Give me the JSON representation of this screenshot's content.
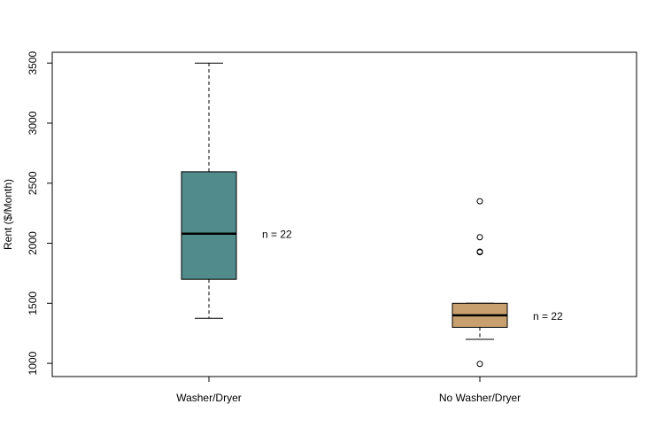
{
  "chart_data": {
    "type": "box",
    "ylabel": "Rent ($/Month)",
    "xlabel": "",
    "title": "",
    "ylim": [
      890,
      3590
    ],
    "yticks": [
      1000,
      1500,
      2000,
      2500,
      3000,
      3500
    ],
    "grid": false,
    "legend": "none",
    "categories": [
      "Washer/Dryer",
      "No Washer/Dryer"
    ],
    "groups": [
      {
        "category": "Washer/Dryer",
        "color": "#528b8b",
        "whisker_low": 1375,
        "q1": 1700,
        "median": 2080,
        "q3": 2595,
        "whisker_high": 3500,
        "outliers": [],
        "annotation": "n = 22"
      },
      {
        "category": "No Washer/Dryer",
        "color": "#c8a070",
        "whisker_low": 1200,
        "q1": 1300,
        "median": 1400,
        "q3": 1500,
        "whisker_high": 1500,
        "outliers": [
          995,
          1925,
          1930,
          2050,
          2350
        ],
        "annotation": "n = 22"
      }
    ]
  }
}
